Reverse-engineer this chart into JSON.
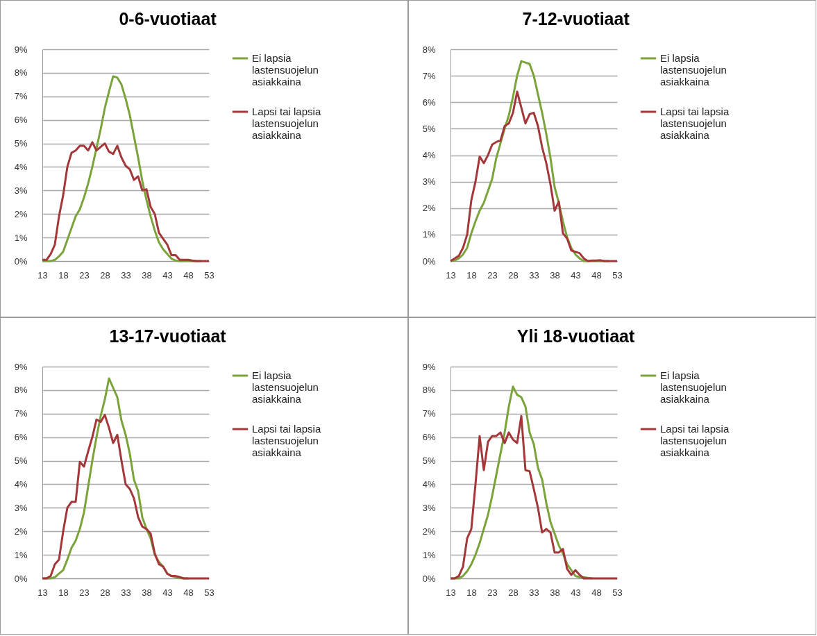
{
  "chart_data": [
    {
      "type": "line",
      "title": "0-6-vuotiaat",
      "x": [
        13,
        14,
        15,
        16,
        17,
        18,
        19,
        20,
        21,
        22,
        23,
        24,
        25,
        26,
        27,
        28,
        29,
        30,
        31,
        32,
        33,
        34,
        35,
        36,
        37,
        38,
        39,
        40,
        41,
        42,
        43,
        44,
        45,
        46,
        47,
        48,
        49,
        50,
        51,
        52,
        53
      ],
      "series": [
        {
          "name": "Ei lapsia lastensuojelun asiakkaina",
          "color": "#7aa33a",
          "values": [
            0,
            0,
            0,
            0.05,
            0.2,
            0.4,
            0.9,
            1.4,
            1.9,
            2.2,
            2.7,
            3.3,
            4,
            4.8,
            5.6,
            6.5,
            7.2,
            7.85,
            7.8,
            7.5,
            6.9,
            6.2,
            5.3,
            4.4,
            3.4,
            2.6,
            1.9,
            1.3,
            0.8,
            0.5,
            0.3,
            0.1,
            0.02,
            0,
            0,
            0,
            0,
            0,
            0,
            null,
            null
          ]
        },
        {
          "name": "Lapsi tai lapsia lastensuojelun asiakkaina",
          "color": "#a3373a",
          "values": [
            0.05,
            0.05,
            0.3,
            0.7,
            1.9,
            2.8,
            4,
            4.6,
            4.7,
            4.9,
            4.9,
            4.7,
            5.05,
            4.7,
            4.85,
            5,
            4.65,
            4.55,
            4.9,
            4.4,
            4.05,
            3.9,
            3.45,
            3.6,
            3,
            3.05,
            2.3,
            2,
            1.2,
            0.95,
            0.7,
            0.25,
            0.25,
            0.05,
            0.05,
            0.05,
            0.02,
            0,
            0,
            0,
            0
          ]
        }
      ],
      "xlim": [
        13,
        53
      ],
      "xticks": [
        13,
        18,
        23,
        28,
        33,
        38,
        43,
        48,
        53
      ],
      "ylim": [
        0,
        9
      ],
      "yticks": [
        {
          "value": 0,
          "label": "0%"
        },
        {
          "value": 1,
          "label": "1%"
        },
        {
          "value": 2,
          "label": "2%"
        },
        {
          "value": 3,
          "label": "3%"
        },
        {
          "value": 4,
          "label": "4%"
        },
        {
          "value": 5,
          "label": "5%"
        },
        {
          "value": 6,
          "label": "6%"
        },
        {
          "value": 7,
          "label": "7%"
        },
        {
          "value": 8,
          "label": "8%"
        },
        {
          "value": 9,
          "label": "9%"
        }
      ],
      "grid": "y",
      "legend": "right"
    },
    {
      "type": "line",
      "title": "7-12-vuotiaat",
      "x": [
        13,
        14,
        15,
        16,
        17,
        18,
        19,
        20,
        21,
        22,
        23,
        24,
        25,
        26,
        27,
        28,
        29,
        30,
        31,
        32,
        33,
        34,
        35,
        36,
        37,
        38,
        39,
        40,
        41,
        42,
        43,
        44,
        45,
        46,
        47,
        48,
        49,
        50,
        51,
        52,
        53
      ],
      "series": [
        {
          "name": "Ei lapsia lastensuojelun asiakkaina",
          "color": "#7aa33a",
          "values": [
            0,
            0.02,
            0.1,
            0.25,
            0.5,
            1.05,
            1.5,
            1.9,
            2.2,
            2.65,
            3.1,
            3.9,
            4.45,
            5,
            5.5,
            6.2,
            7,
            7.55,
            7.5,
            7.45,
            7,
            6.3,
            5.6,
            4.8,
            3.9,
            2.8,
            2.2,
            1.5,
            0.9,
            0.5,
            0.25,
            0.1,
            0,
            0,
            0,
            0,
            0,
            0,
            0,
            null,
            null
          ]
        },
        {
          "name": "Lapsi tai lapsia lastensuojelun asiakkaina",
          "color": "#a3373a",
          "values": [
            0,
            0.1,
            0.2,
            0.5,
            1,
            2.3,
            3,
            3.95,
            3.7,
            4,
            4.4,
            4.5,
            4.55,
            5.1,
            5.2,
            5.6,
            6.4,
            5.8,
            5.2,
            5.55,
            5.6,
            5.1,
            4.3,
            3.7,
            2.9,
            1.9,
            2.25,
            1.05,
            0.85,
            0.4,
            0.35,
            0.3,
            0.1,
            0,
            0.02,
            0.02,
            0.03,
            0,
            0,
            0,
            0
          ]
        }
      ],
      "xlim": [
        13,
        53
      ],
      "xticks": [
        13,
        18,
        23,
        28,
        33,
        38,
        43,
        48,
        53
      ],
      "ylim": [
        0,
        8
      ],
      "yticks": [
        {
          "value": 0,
          "label": "0%"
        },
        {
          "value": 1,
          "label": "1%"
        },
        {
          "value": 2,
          "label": "2%"
        },
        {
          "value": 3,
          "label": "3%"
        },
        {
          "value": 4,
          "label": "4%"
        },
        {
          "value": 5,
          "label": "5%"
        },
        {
          "value": 6,
          "label": "6%"
        },
        {
          "value": 7,
          "label": "7%"
        },
        {
          "value": 8,
          "label": "8%"
        }
      ],
      "grid": "y",
      "legend": "right"
    },
    {
      "type": "line",
      "title": "13-17-vuotiaat",
      "x": [
        13,
        14,
        15,
        16,
        17,
        18,
        19,
        20,
        21,
        22,
        23,
        24,
        25,
        26,
        27,
        28,
        29,
        30,
        31,
        32,
        33,
        34,
        35,
        36,
        37,
        38,
        39,
        40,
        41,
        42,
        43,
        44,
        45,
        46,
        47,
        48,
        49,
        50,
        51,
        52,
        53
      ],
      "series": [
        {
          "name": "Ei lapsia lastensuojelun asiakkaina",
          "color": "#7aa33a",
          "values": [
            0,
            0,
            0,
            0.05,
            0.2,
            0.35,
            0.8,
            1.3,
            1.6,
            2.1,
            2.8,
            3.9,
            5,
            6,
            6.9,
            7.6,
            8.5,
            8.1,
            7.7,
            6.7,
            6.1,
            5.3,
            4.2,
            3.7,
            2.6,
            2.1,
            1.7,
            1,
            0.7,
            0.5,
            0.2,
            0.1,
            0.05,
            0.02,
            0,
            0,
            null,
            null,
            null,
            null,
            null
          ]
        },
        {
          "name": "Lapsi tai lapsia lastensuojelun asiakkaina",
          "color": "#a3373a",
          "values": [
            0,
            0,
            0.1,
            0.6,
            0.8,
            2,
            3,
            3.25,
            3.25,
            4.95,
            4.75,
            5.4,
            6,
            6.75,
            6.65,
            6.95,
            6.4,
            5.75,
            6.1,
            5,
            4,
            3.8,
            3.4,
            2.6,
            2.2,
            2.1,
            1.9,
            1.05,
            0.6,
            0.5,
            0.2,
            0.1,
            0.1,
            0.05,
            0,
            0,
            0,
            0,
            0,
            0,
            0
          ]
        }
      ],
      "xlim": [
        13,
        53
      ],
      "xticks": [
        13,
        18,
        23,
        28,
        33,
        38,
        43,
        48,
        53
      ],
      "ylim": [
        0,
        9
      ],
      "yticks": [
        {
          "value": 0,
          "label": "0%"
        },
        {
          "value": 1,
          "label": "1%"
        },
        {
          "value": 2,
          "label": "2%"
        },
        {
          "value": 3,
          "label": "3%"
        },
        {
          "value": 4,
          "label": "4%"
        },
        {
          "value": 5,
          "label": "5%"
        },
        {
          "value": 6,
          "label": "6%"
        },
        {
          "value": 7,
          "label": "7%"
        },
        {
          "value": 8,
          "label": "8%"
        },
        {
          "value": 9,
          "label": "9%"
        }
      ],
      "grid": "y",
      "legend": "right"
    },
    {
      "type": "line",
      "title": "Yli 18-vuotiaat",
      "x": [
        13,
        14,
        15,
        16,
        17,
        18,
        19,
        20,
        21,
        22,
        23,
        24,
        25,
        26,
        27,
        28,
        29,
        30,
        31,
        32,
        33,
        34,
        35,
        36,
        37,
        38,
        39,
        40,
        41,
        42,
        43,
        44,
        45,
        46,
        47,
        48,
        49,
        50,
        51,
        52,
        53
      ],
      "series": [
        {
          "name": "Ei lapsia lastensuojelun asiakkaina",
          "color": "#7aa33a",
          "values": [
            0,
            0,
            0,
            0.1,
            0.3,
            0.6,
            1,
            1.5,
            2.1,
            2.7,
            3.5,
            4.4,
            5.3,
            6.2,
            7.3,
            8.15,
            7.8,
            7.7,
            7.3,
            6.2,
            5.7,
            4.7,
            4.2,
            3.2,
            2.4,
            1.9,
            1.4,
            1.05,
            0.6,
            0.35,
            0.1,
            0.05,
            0.05,
            0.02,
            0,
            null,
            null,
            null,
            null,
            null,
            null
          ]
        },
        {
          "name": "Lapsi tai lapsia lastensuojelun asiakkaina",
          "color": "#a3373a",
          "values": [
            0,
            0,
            0.1,
            0.5,
            1.7,
            2.1,
            4,
            6.05,
            4.6,
            5.8,
            6.05,
            6.05,
            6.2,
            5.75,
            6.2,
            5.9,
            5.75,
            6.9,
            4.6,
            4.55,
            3.8,
            3,
            1.95,
            2.1,
            1.95,
            1.1,
            1.1,
            1.25,
            0.4,
            0.15,
            0.35,
            0.15,
            0,
            0,
            0,
            0,
            0,
            0,
            0,
            0,
            0
          ]
        }
      ],
      "xlim": [
        13,
        53
      ],
      "xticks": [
        13,
        18,
        23,
        28,
        33,
        38,
        43,
        48,
        53
      ],
      "ylim": [
        0,
        9
      ],
      "yticks": [
        {
          "value": 0,
          "label": "0%"
        },
        {
          "value": 1,
          "label": "1%"
        },
        {
          "value": 2,
          "label": "2%"
        },
        {
          "value": 3,
          "label": "3%"
        },
        {
          "value": 4,
          "label": "4%"
        },
        {
          "value": 5,
          "label": "5%"
        },
        {
          "value": 6,
          "label": "6%"
        },
        {
          "value": 7,
          "label": "7%"
        },
        {
          "value": 8,
          "label": "8%"
        },
        {
          "value": 9,
          "label": "9%"
        }
      ],
      "grid": "y",
      "legend": "right"
    }
  ]
}
